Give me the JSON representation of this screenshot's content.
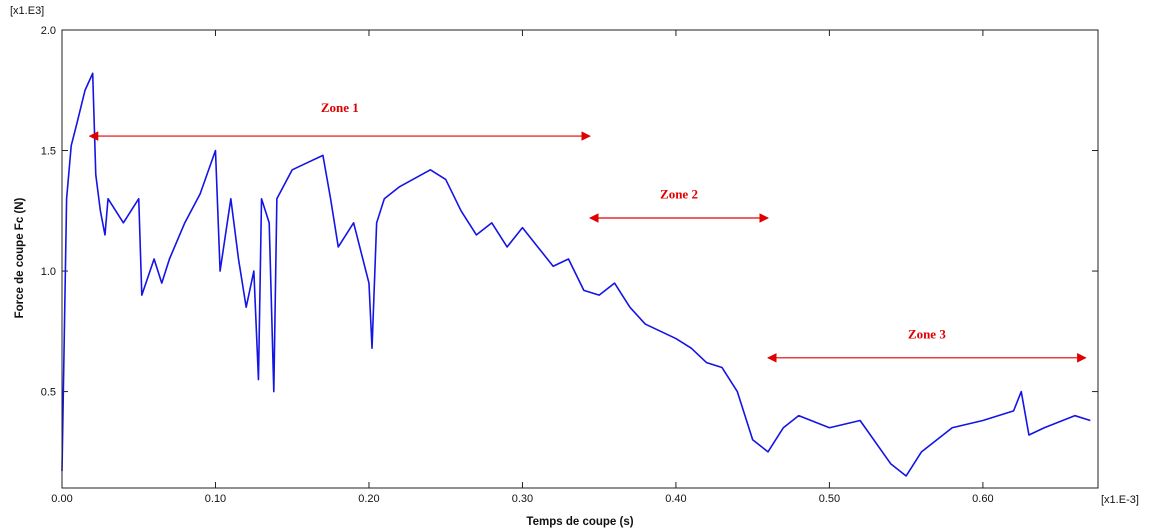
{
  "chart_data": {
    "type": "line",
    "ylabel": "Force de coupe Fc (N)",
    "xlabel": "Temps de coupe (s)",
    "y_multiplier": "[x1.E3]",
    "x_multiplier": "[x1.E-3]",
    "xlim": [
      0,
      0.675
    ],
    "ylim": [
      0.1,
      2.0
    ],
    "x_ticks": [
      "0.00",
      "0.10",
      "0.20",
      "0.30",
      "0.40",
      "0.50",
      "0.60"
    ],
    "y_ticks": [
      "0.5",
      "1.0",
      "1.5",
      "2.0"
    ],
    "series_color": "#1414e6",
    "annotation_color": "#e00000",
    "series": [
      {
        "x": [
          0,
          0.003,
          0.006,
          0.01,
          0.015,
          0.02,
          0.022,
          0.025,
          0.028,
          0.03,
          0.035,
          0.04,
          0.05,
          0.052,
          0.06,
          0.065,
          0.07,
          0.08,
          0.09,
          0.1,
          0.103,
          0.11,
          0.115,
          0.12,
          0.125,
          0.128,
          0.13,
          0.135,
          0.138,
          0.14,
          0.15,
          0.16,
          0.17,
          0.175,
          0.18,
          0.19,
          0.2,
          0.202,
          0.205,
          0.21,
          0.22,
          0.24,
          0.25,
          0.26,
          0.27,
          0.28,
          0.29,
          0.3,
          0.31,
          0.32,
          0.33,
          0.34,
          0.35,
          0.36,
          0.37,
          0.38,
          0.39,
          0.4,
          0.41,
          0.42,
          0.43,
          0.44,
          0.45,
          0.46,
          0.47,
          0.48,
          0.5,
          0.52,
          0.54,
          0.55,
          0.56,
          0.58,
          0.6,
          0.62,
          0.625,
          0.63,
          0.64,
          0.66,
          0.67
        ],
        "y": [
          0.17,
          1.3,
          1.52,
          1.62,
          1.75,
          1.82,
          1.4,
          1.25,
          1.15,
          1.3,
          1.25,
          1.2,
          1.3,
          0.9,
          1.05,
          0.95,
          1.05,
          1.2,
          1.32,
          1.5,
          1.0,
          1.3,
          1.05,
          0.85,
          1.0,
          0.55,
          1.3,
          1.2,
          0.5,
          1.3,
          1.42,
          1.45,
          1.48,
          1.3,
          1.1,
          1.2,
          0.95,
          0.68,
          1.2,
          1.3,
          1.35,
          1.42,
          1.38,
          1.25,
          1.15,
          1.2,
          1.1,
          1.18,
          1.1,
          1.02,
          1.05,
          0.92,
          0.9,
          0.95,
          0.85,
          0.78,
          0.75,
          0.72,
          0.68,
          0.62,
          0.6,
          0.5,
          0.3,
          0.25,
          0.35,
          0.4,
          0.35,
          0.38,
          0.2,
          0.15,
          0.25,
          0.35,
          0.38,
          0.42,
          0.5,
          0.32,
          0.35,
          0.4,
          0.38
        ]
      }
    ],
    "annotations": [
      {
        "label": "Zone 1",
        "x_start": 0.018,
        "x_end": 0.344,
        "y": 1.56,
        "label_y": 1.66
      },
      {
        "label": "Zone 2",
        "x_start": 0.344,
        "x_end": 0.46,
        "y": 1.22,
        "label_y": 1.3
      },
      {
        "label": "Zone 3",
        "x_start": 0.46,
        "x_end": 0.667,
        "y": 0.64,
        "label_y": 0.72
      }
    ]
  }
}
